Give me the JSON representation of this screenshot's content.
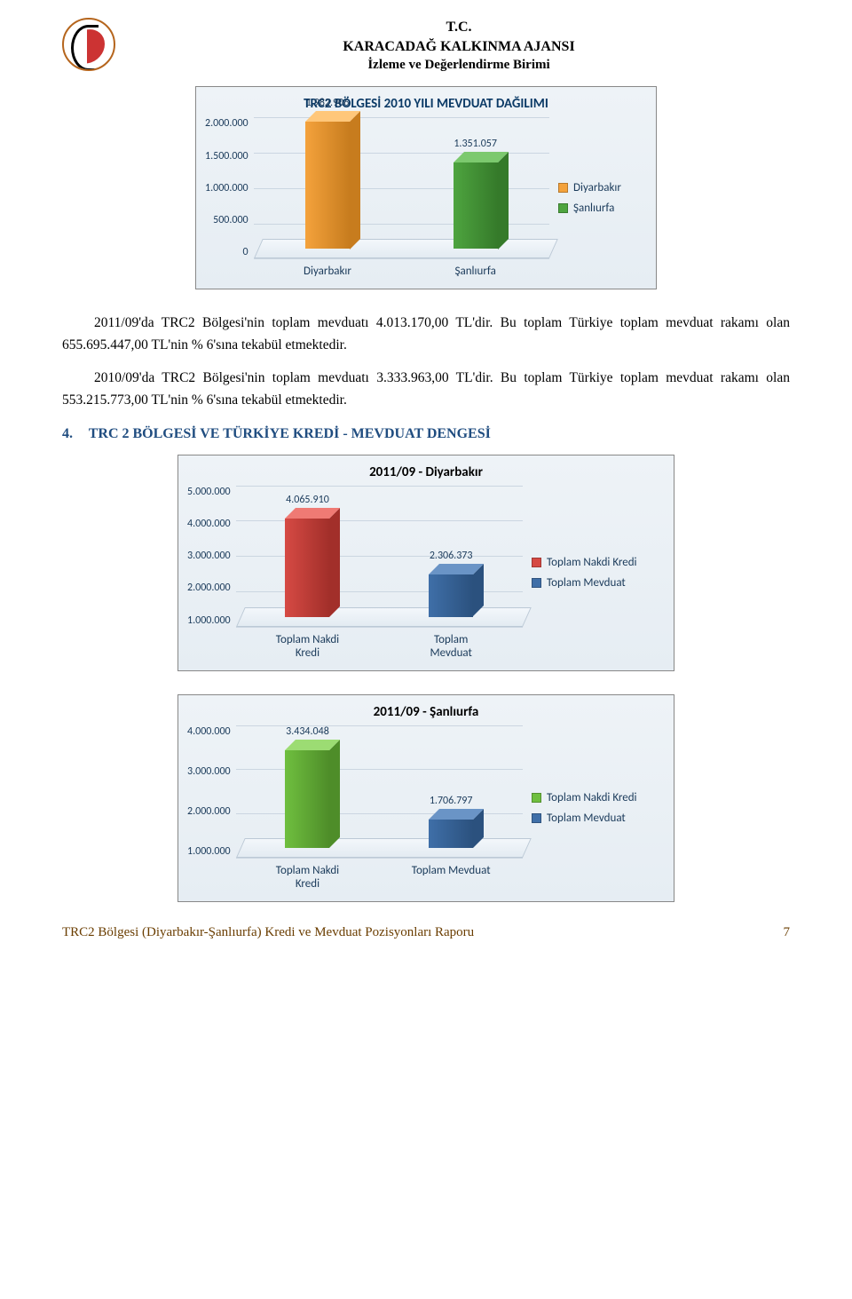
{
  "header": {
    "line_a": "T.C.",
    "line_b": "KARACADAĞ KALKINMA AJANSI",
    "line_c": "İzleme ve Değerlendirme Birimi"
  },
  "chart1": {
    "type": "bar",
    "title": "TRC2 BÖLGESİ 2010 YILI MEVDUAT DAĞILIMI",
    "categories": [
      "Diyarbakır",
      "Şanlıurfa"
    ],
    "values": [
      1982906,
      1351057
    ],
    "value_labels": [
      "1.982.906",
      "1.351.057"
    ],
    "yticks": [
      "2.000.000",
      "1.500.000",
      "1.000.000",
      "500.000",
      "0"
    ],
    "ylim": [
      0,
      2000000
    ],
    "bar_colors_front": [
      "#f4a23c",
      "#4ea43f"
    ],
    "bar_colors_side": [
      "#c77c1e",
      "#357a2a"
    ],
    "bar_colors_top": [
      "#ffc77a",
      "#7cc96e"
    ],
    "legend": [
      "Diyarbakır",
      "Şanlıurfa"
    ],
    "legend_colors": [
      "#f4a23c",
      "#4ea43f"
    ],
    "background": "#e9f0f6",
    "grid_color": "#cbd6e1",
    "title_color": "#0b3a66",
    "label_color": "#1a3a5a",
    "title_fontsize": 15,
    "label_fontsize": 12
  },
  "paragraph1": "2011/09'da TRC2 Bölgesi'nin toplam mevduatı 4.013.170,00 TL'dir. Bu toplam Türkiye toplam mevduat rakamı olan 655.695.447,00 TL'nin % 6'sına tekabül etmektedir.",
  "paragraph2": "2010/09'da TRC2 Bölgesi'nin toplam mevduatı 3.333.963,00 TL'dir. Bu toplam Türkiye toplam mevduat rakamı olan 553.215.773,00 TL'nin % 6'sına tekabül etmektedir.",
  "section4": {
    "num": "4.",
    "title": "TRC 2 BÖLGESİ VE TÜRKİYE KREDİ - MEVDUAT DENGESİ"
  },
  "chart2": {
    "type": "bar",
    "title": "2011/09 - Diyarbakır",
    "categories": [
      "Toplam Nakdi Kredi",
      "Toplam Mevduat"
    ],
    "values": [
      4065910,
      2306373
    ],
    "value_labels": [
      "4.065.910",
      "2.306.373"
    ],
    "yticks": [
      "5.000.000",
      "4.000.000",
      "3.000.000",
      "2.000.000",
      "1.000.000"
    ],
    "ylim": [
      1000000,
      5000000
    ],
    "bar_colors_front": [
      "#d64a44",
      "#3f6fa8"
    ],
    "bar_colors_side": [
      "#a22f2a",
      "#2b517e"
    ],
    "bar_colors_top": [
      "#ef7a74",
      "#6a94c6"
    ],
    "legend": [
      "Toplam Nakdi Kredi",
      "Toplam Mevduat"
    ],
    "legend_colors": [
      "#d64a44",
      "#3f6fa8"
    ],
    "x_labels": [
      "Toplam Nakdi\nKredi",
      "Toplam\nMevduat"
    ]
  },
  "chart3": {
    "type": "bar",
    "title": "2011/09 - Şanlıurfa",
    "categories": [
      "Toplam Nakdi Kredi",
      "Toplam Mevduat"
    ],
    "values": [
      3434048,
      1706797
    ],
    "value_labels": [
      "3.434.048",
      "1.706.797"
    ],
    "yticks": [
      "4.000.000",
      "3.000.000",
      "2.000.000",
      "1.000.000"
    ],
    "ylim": [
      1000000,
      4000000
    ],
    "bar_colors_front": [
      "#6fbf3f",
      "#3f6fa8"
    ],
    "bar_colors_side": [
      "#4e8d29",
      "#2b517e"
    ],
    "bar_colors_top": [
      "#9cdc73",
      "#6a94c6"
    ],
    "legend": [
      "Toplam Nakdi Kredi",
      "Toplam Mevduat"
    ],
    "legend_colors": [
      "#6fbf3f",
      "#3f6fa8"
    ],
    "x_labels": [
      "Toplam Nakdi\nKredi",
      "Toplam Mevduat"
    ]
  },
  "footer": {
    "text": "TRC2 Bölgesi (Diyarbakır-Şanlıurfa) Kredi ve Mevduat Pozisyonları Raporu",
    "page": "7"
  }
}
